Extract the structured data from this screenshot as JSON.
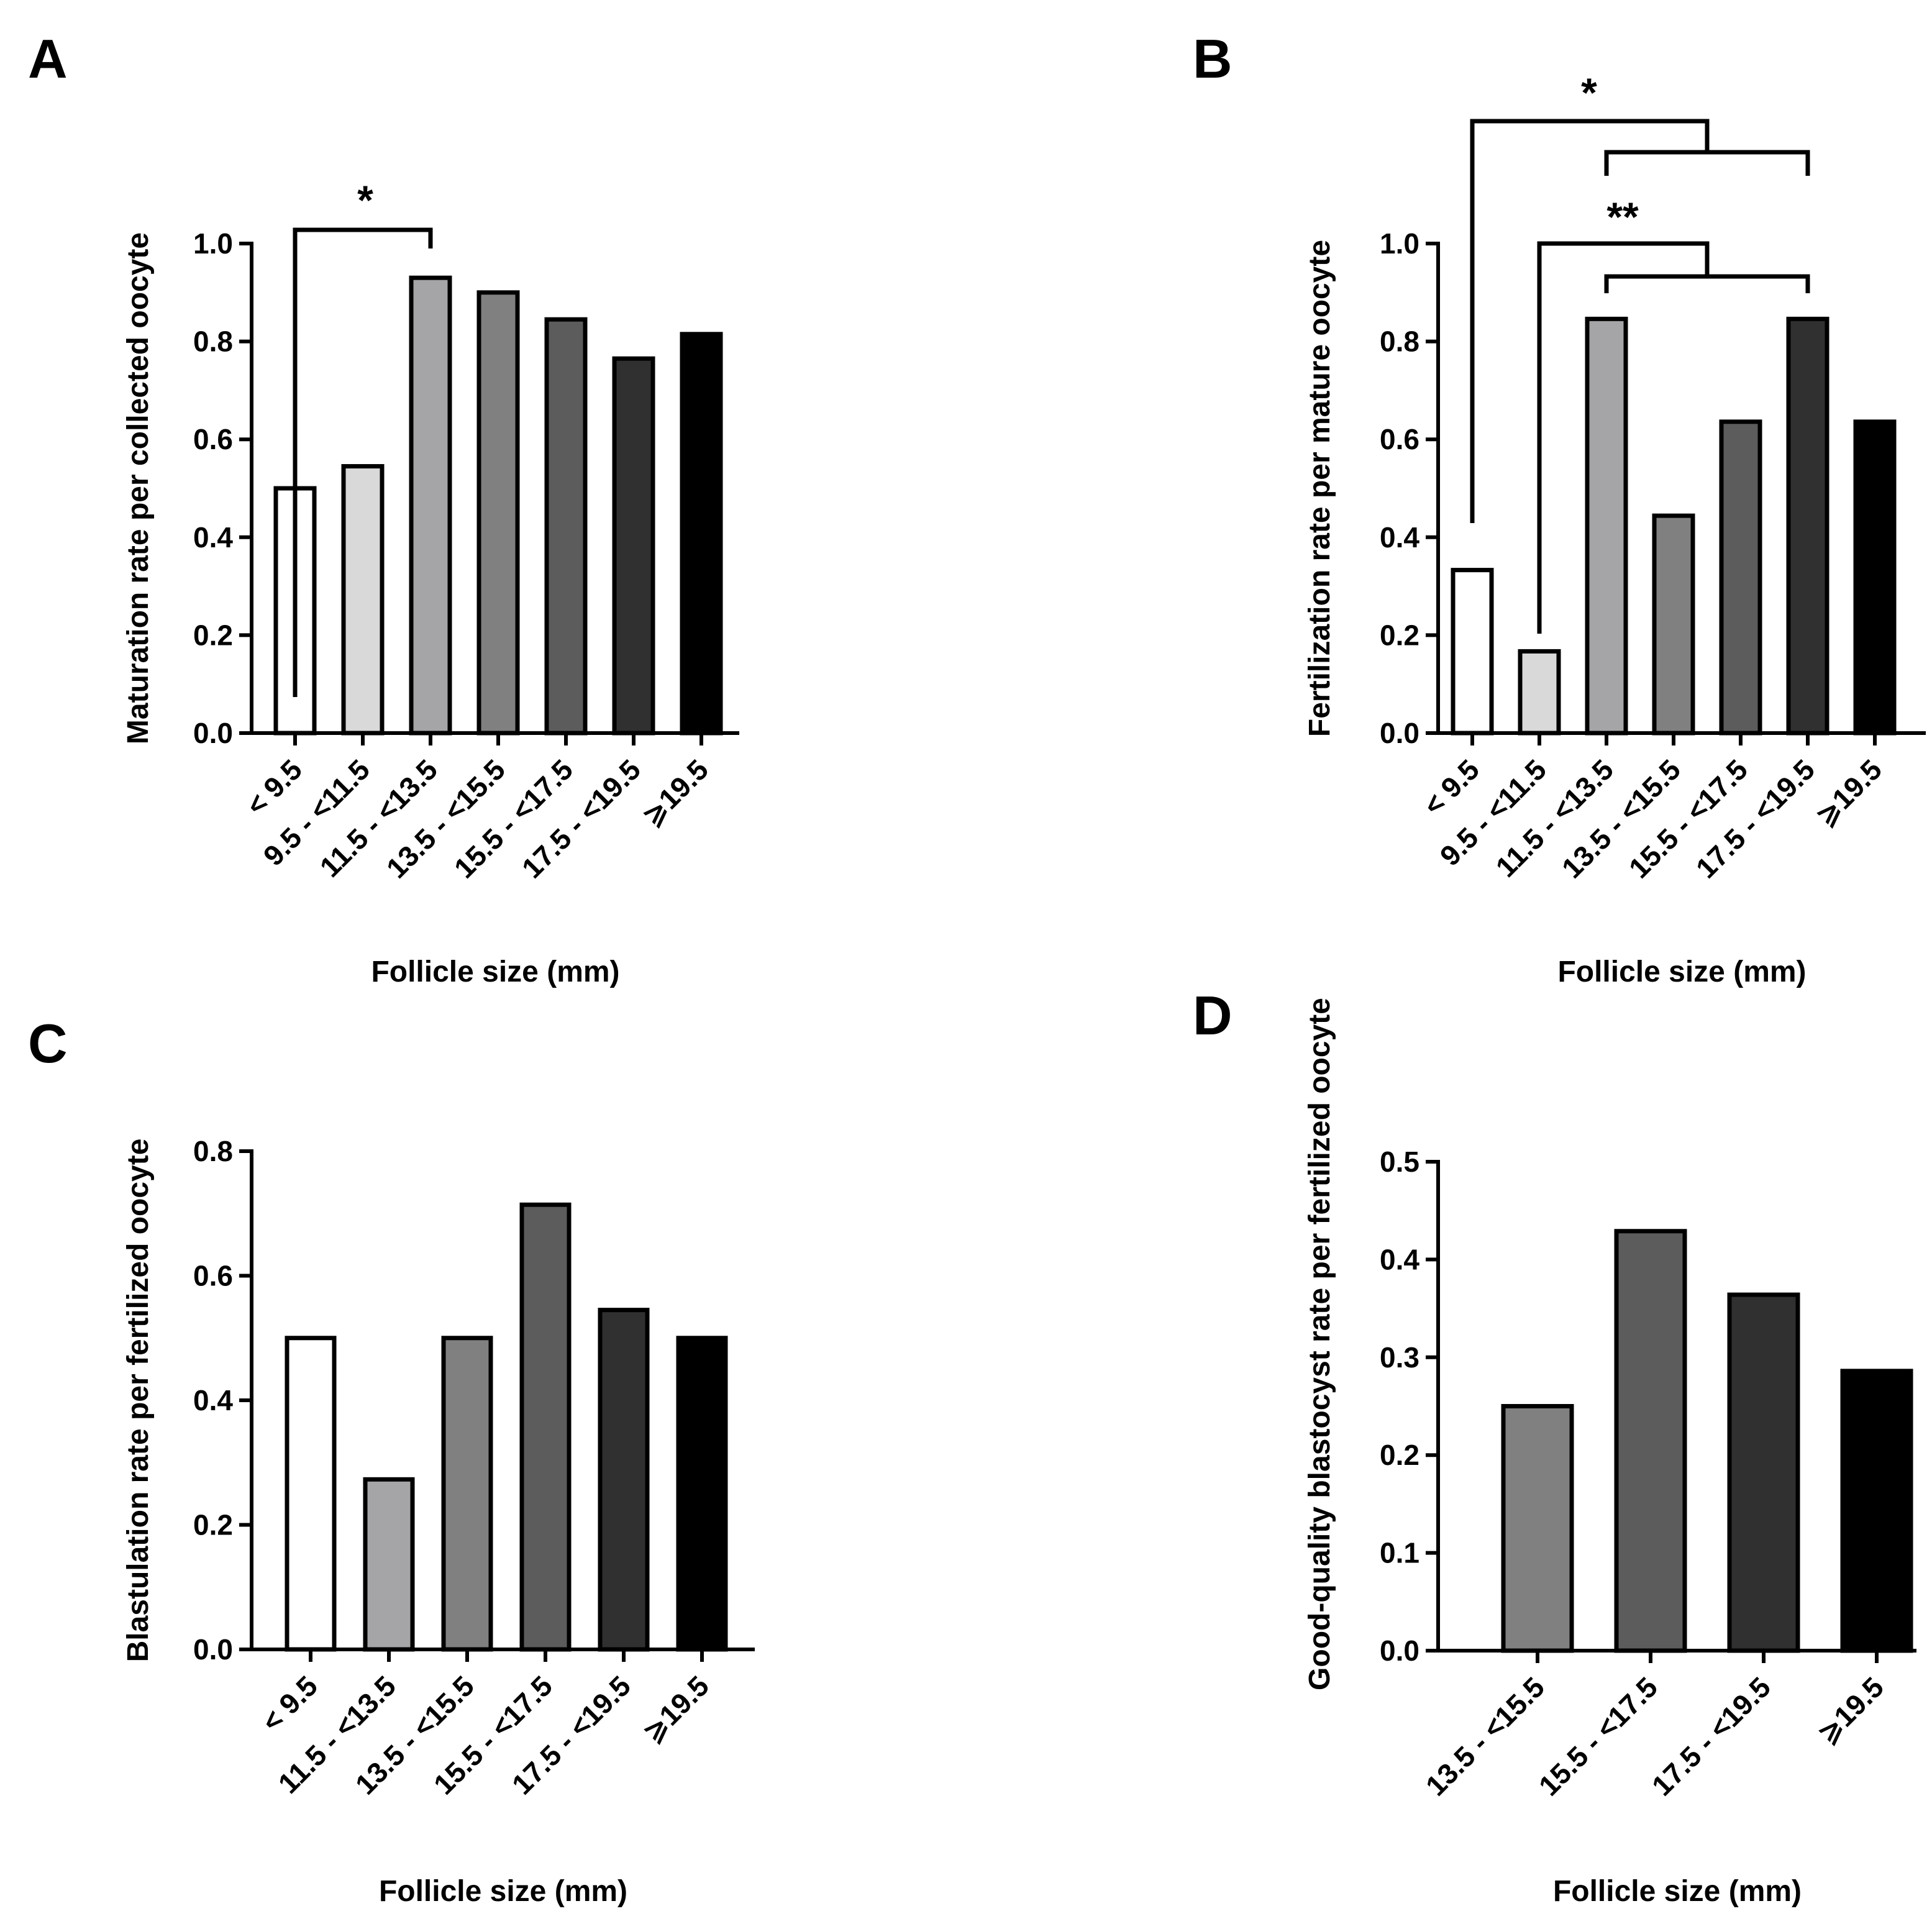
{
  "figure": {
    "panels": [
      {
        "id": "A",
        "label": "A"
      },
      {
        "id": "B",
        "label": "B"
      },
      {
        "id": "C",
        "label": "C"
      },
      {
        "id": "D",
        "label": "D"
      }
    ]
  },
  "colors": {
    "lt9_5": "#ffffff",
    "9_5_11_5": "#d9d9d9",
    "11_5_13_5": "#a5a5a8",
    "13_5_15_5": "#808080",
    "15_5_17_5": "#5c5c5c",
    "17_5_19_5": "#303030",
    "ge19_5": "#000000"
  },
  "chart_data": [
    {
      "panel": "A",
      "type": "bar",
      "title": "",
      "xlabel": "Follicle size (mm)",
      "ylabel": "Maturation rate per collected oocyte",
      "categories": [
        "< 9.5",
        "9.5 - <11.5",
        "11.5 - <13.5",
        "13.5 - <15.5",
        "15.5 - <17.5",
        "17.5 - <19.5",
        "⩾19.5"
      ],
      "values": [
        0.5,
        0.545,
        0.93,
        0.9,
        0.845,
        0.765,
        0.815
      ],
      "colors": [
        "#ffffff",
        "#d9d9d9",
        "#a5a5a8",
        "#808080",
        "#5c5c5c",
        "#303030",
        "#000000"
      ],
      "ylim": [
        0,
        1.0
      ],
      "yticks": [
        "0.0",
        "0.2",
        "0.4",
        "0.6",
        "0.8",
        "1.0"
      ],
      "significance": [
        {
          "from": "< 9.5",
          "to": "11.5 - <13.5",
          "label": "*"
        }
      ]
    },
    {
      "panel": "B",
      "type": "bar",
      "title": "",
      "xlabel": "Follicle size (mm)",
      "ylabel": "Fertilization rate per mature oocyte",
      "categories": [
        "< 9.5",
        "9.5 - <11.5",
        "11.5 - <13.5",
        "13.5 - <15.5",
        "15.5 - <17.5",
        "17.5 - <19.5",
        "⩾19.5"
      ],
      "values": [
        0.333,
        0.167,
        0.846,
        0.444,
        0.636,
        0.846,
        0.636
      ],
      "colors": [
        "#ffffff",
        "#d9d9d9",
        "#a5a5a8",
        "#808080",
        "#5c5c5c",
        "#303030",
        "#000000"
      ],
      "ylim": [
        0,
        1.0
      ],
      "yticks": [
        "0.0",
        "0.2",
        "0.4",
        "0.6",
        "0.8",
        "1.0"
      ],
      "significance": [
        {
          "from": "< 9.5",
          "to": [
            "11.5 - <13.5",
            "17.5 - <19.5"
          ],
          "label": "*"
        },
        {
          "from": "9.5 - <11.5",
          "to": [
            "11.5 - <13.5",
            "17.5 - <19.5"
          ],
          "label": "**"
        }
      ]
    },
    {
      "panel": "C",
      "type": "bar",
      "title": "",
      "xlabel": "Follicle size (mm)",
      "ylabel": "Blastulation rate per fertilized oocyte",
      "categories": [
        "< 9.5",
        "11.5 - <13.5",
        "13.5 - <15.5",
        "15.5 - <17.5",
        "17.5 - <19.5",
        "⩾19.5"
      ],
      "values": [
        0.5,
        0.273,
        0.5,
        0.714,
        0.545,
        0.5
      ],
      "colors": [
        "#ffffff",
        "#a5a5a8",
        "#808080",
        "#5c5c5c",
        "#303030",
        "#000000"
      ],
      "ylim": [
        0,
        0.8
      ],
      "yticks": [
        "0.0",
        "0.2",
        "0.4",
        "0.6",
        "0.8"
      ],
      "significance": []
    },
    {
      "panel": "D",
      "type": "bar",
      "title": "",
      "xlabel": "Follicle size (mm)",
      "ylabel": "Good-quality blastocyst rate per fertilized oocyte",
      "categories": [
        "13.5 - <15.5",
        "15.5 - <17.5",
        "17.5 - <19.5",
        "⩾19.5"
      ],
      "values": [
        0.25,
        0.429,
        0.364,
        0.286
      ],
      "colors": [
        "#808080",
        "#5c5c5c",
        "#303030",
        "#000000"
      ],
      "ylim": [
        0,
        0.5
      ],
      "yticks": [
        "0.0",
        "0.1",
        "0.2",
        "0.3",
        "0.4",
        "0.5"
      ],
      "significance": []
    }
  ]
}
